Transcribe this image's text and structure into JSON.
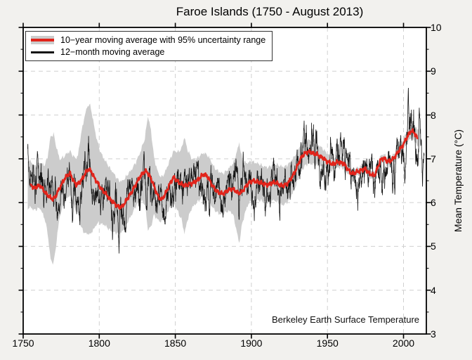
{
  "chart_data": {
    "type": "line",
    "title": "Faroe Islands  (1750 - August 2013)",
    "xlabel": "",
    "ylabel": "Mean Temperature (°C)",
    "attribution": "Berkeley Earth Surface Temperature",
    "xlim": [
      1750,
      2015
    ],
    "ylim": [
      3,
      10
    ],
    "xticks": [
      1750,
      1800,
      1850,
      1900,
      1950,
      2000
    ],
    "yticks": [
      3,
      4,
      5,
      6,
      7,
      8,
      9,
      10
    ],
    "y_minor_tick_step": 0.5,
    "grid": {
      "style": "dashed",
      "vertical_at": [
        1800,
        1850,
        1900,
        1950,
        2000
      ],
      "horizontal_at": [
        4,
        5,
        6,
        7,
        8,
        9
      ]
    },
    "legend_position": "top-left",
    "legend_items": [
      {
        "label": "10−year moving average with 95% uncertainty range",
        "swatch": "red-line-with-gray-band"
      },
      {
        "label": "12−month moving average",
        "swatch": "black-line"
      }
    ],
    "colors": {
      "ten_year_line": "#e1241b",
      "uncertainty_band": "#cccccc",
      "twelve_month_line": "#141414",
      "figure_background": "#f2f1ee",
      "plot_background": "#ffffff",
      "gridline": "#d0d0d0"
    },
    "series": {
      "ten_year_moving_average": {
        "units": "°C",
        "points": [
          [
            1755,
            6.42
          ],
          [
            1757,
            6.33
          ],
          [
            1759,
            6.36
          ],
          [
            1761,
            6.4
          ],
          [
            1763,
            6.3
          ],
          [
            1765,
            6.21
          ],
          [
            1767,
            6.14
          ],
          [
            1769,
            6.08
          ],
          [
            1771,
            6.12
          ],
          [
            1773,
            6.27
          ],
          [
            1775,
            6.4
          ],
          [
            1777,
            6.53
          ],
          [
            1779,
            6.63
          ],
          [
            1781,
            6.66
          ],
          [
            1783,
            6.5
          ],
          [
            1785,
            6.4
          ],
          [
            1787,
            6.46
          ],
          [
            1789,
            6.55
          ],
          [
            1791,
            6.68
          ],
          [
            1793,
            6.77
          ],
          [
            1795,
            6.7
          ],
          [
            1797,
            6.55
          ],
          [
            1799,
            6.45
          ],
          [
            1801,
            6.33
          ],
          [
            1803,
            6.25
          ],
          [
            1805,
            6.17
          ],
          [
            1807,
            6.08
          ],
          [
            1809,
            6.01
          ],
          [
            1811,
            5.95
          ],
          [
            1813,
            5.89
          ],
          [
            1815,
            5.91
          ],
          [
            1817,
            6.0
          ],
          [
            1819,
            6.12
          ],
          [
            1821,
            6.22
          ],
          [
            1823,
            6.35
          ],
          [
            1825,
            6.48
          ],
          [
            1827,
            6.6
          ],
          [
            1829,
            6.69
          ],
          [
            1831,
            6.72
          ],
          [
            1833,
            6.62
          ],
          [
            1835,
            6.47
          ],
          [
            1837,
            6.28
          ],
          [
            1839,
            6.12
          ],
          [
            1841,
            6.07
          ],
          [
            1843,
            6.17
          ],
          [
            1845,
            6.32
          ],
          [
            1847,
            6.47
          ],
          [
            1849,
            6.58
          ],
          [
            1851,
            6.5
          ],
          [
            1853,
            6.44
          ],
          [
            1855,
            6.41
          ],
          [
            1857,
            6.39
          ],
          [
            1859,
            6.42
          ],
          [
            1861,
            6.44
          ],
          [
            1863,
            6.47
          ],
          [
            1865,
            6.53
          ],
          [
            1867,
            6.6
          ],
          [
            1869,
            6.65
          ],
          [
            1871,
            6.6
          ],
          [
            1873,
            6.48
          ],
          [
            1875,
            6.35
          ],
          [
            1877,
            6.27
          ],
          [
            1879,
            6.22
          ],
          [
            1881,
            6.2
          ],
          [
            1883,
            6.24
          ],
          [
            1885,
            6.29
          ],
          [
            1887,
            6.32
          ],
          [
            1889,
            6.28
          ],
          [
            1891,
            6.23
          ],
          [
            1893,
            6.22
          ],
          [
            1895,
            6.3
          ],
          [
            1897,
            6.4
          ],
          [
            1899,
            6.47
          ],
          [
            1901,
            6.5
          ],
          [
            1903,
            6.48
          ],
          [
            1905,
            6.47
          ],
          [
            1907,
            6.44
          ],
          [
            1909,
            6.42
          ],
          [
            1911,
            6.4
          ],
          [
            1913,
            6.44
          ],
          [
            1915,
            6.47
          ],
          [
            1917,
            6.44
          ],
          [
            1919,
            6.4
          ],
          [
            1921,
            6.38
          ],
          [
            1923,
            6.42
          ],
          [
            1925,
            6.49
          ],
          [
            1927,
            6.6
          ],
          [
            1929,
            6.73
          ],
          [
            1931,
            6.9
          ],
          [
            1933,
            7.04
          ],
          [
            1935,
            7.12
          ],
          [
            1937,
            7.16
          ],
          [
            1939,
            7.15
          ],
          [
            1941,
            7.12
          ],
          [
            1943,
            7.1
          ],
          [
            1945,
            7.06
          ],
          [
            1947,
            7.02
          ],
          [
            1949,
            6.96
          ],
          [
            1951,
            6.92
          ],
          [
            1953,
            6.88
          ],
          [
            1955,
            6.9
          ],
          [
            1957,
            6.93
          ],
          [
            1959,
            6.91
          ],
          [
            1961,
            6.88
          ],
          [
            1963,
            6.78
          ],
          [
            1965,
            6.69
          ],
          [
            1967,
            6.66
          ],
          [
            1969,
            6.7
          ],
          [
            1971,
            6.72
          ],
          [
            1973,
            6.75
          ],
          [
            1975,
            6.77
          ],
          [
            1977,
            6.68
          ],
          [
            1979,
            6.64
          ],
          [
            1981,
            6.62
          ],
          [
            1983,
            6.8
          ],
          [
            1985,
            6.98
          ],
          [
            1987,
            7.02
          ],
          [
            1989,
            6.95
          ],
          [
            1991,
            6.95
          ],
          [
            1993,
            6.99
          ],
          [
            1995,
            7.08
          ],
          [
            1997,
            7.19
          ],
          [
            1999,
            7.28
          ],
          [
            2001,
            7.4
          ],
          [
            2003,
            7.54
          ],
          [
            2005,
            7.64
          ],
          [
            2007,
            7.6
          ],
          [
            2009,
            7.48
          ]
        ]
      },
      "uncertainty_95_half_width": {
        "units": "°C",
        "points": [
          [
            1753,
            0.55
          ],
          [
            1757,
            0.5
          ],
          [
            1761,
            0.52
          ],
          [
            1764,
            0.6
          ],
          [
            1766,
            0.85
          ],
          [
            1768,
            1.4
          ],
          [
            1770,
            1.48
          ],
          [
            1772,
            1.05
          ],
          [
            1774,
            0.65
          ],
          [
            1777,
            0.52
          ],
          [
            1780,
            0.5
          ],
          [
            1783,
            0.55
          ],
          [
            1786,
            0.65
          ],
          [
            1788,
            1.05
          ],
          [
            1790,
            1.3
          ],
          [
            1792,
            1.45
          ],
          [
            1794,
            1.48
          ],
          [
            1796,
            1.25
          ],
          [
            1798,
            1.0
          ],
          [
            1800,
            0.85
          ],
          [
            1803,
            0.75
          ],
          [
            1806,
            0.72
          ],
          [
            1809,
            0.68
          ],
          [
            1812,
            0.62
          ],
          [
            1815,
            0.58
          ],
          [
            1818,
            0.55
          ],
          [
            1821,
            0.52
          ],
          [
            1824,
            0.5
          ],
          [
            1827,
            0.55
          ],
          [
            1830,
            0.75
          ],
          [
            1832,
            1.3
          ],
          [
            1834,
            1.1
          ],
          [
            1836,
            0.65
          ],
          [
            1839,
            0.53
          ],
          [
            1842,
            0.5
          ],
          [
            1845,
            0.52
          ],
          [
            1848,
            0.58
          ],
          [
            1851,
            0.65
          ],
          [
            1854,
            0.8
          ],
          [
            1856,
            1.1
          ],
          [
            1858,
            0.8
          ],
          [
            1861,
            0.55
          ],
          [
            1864,
            0.5
          ],
          [
            1867,
            0.5
          ],
          [
            1870,
            0.48
          ],
          [
            1873,
            0.5
          ],
          [
            1876,
            0.48
          ],
          [
            1879,
            0.48
          ],
          [
            1882,
            0.46
          ],
          [
            1885,
            0.48
          ],
          [
            1888,
            0.58
          ],
          [
            1890,
            0.85
          ],
          [
            1892,
            1.15
          ],
          [
            1894,
            0.72
          ],
          [
            1897,
            0.5
          ],
          [
            1900,
            0.44
          ],
          [
            1904,
            0.42
          ],
          [
            1908,
            0.4
          ],
          [
            1912,
            0.4
          ],
          [
            1916,
            0.42
          ],
          [
            1920,
            0.44
          ],
          [
            1924,
            0.42
          ],
          [
            1928,
            0.38
          ],
          [
            1932,
            0.33
          ],
          [
            1936,
            0.28
          ],
          [
            1940,
            0.26
          ],
          [
            1944,
            0.24
          ],
          [
            1948,
            0.2
          ],
          [
            1952,
            0.16
          ],
          [
            1956,
            0.13
          ],
          [
            1960,
            0.11
          ],
          [
            1964,
            0.1
          ],
          [
            1968,
            0.09
          ],
          [
            1972,
            0.09
          ],
          [
            1976,
            0.09
          ],
          [
            1980,
            0.09
          ],
          [
            1984,
            0.09
          ],
          [
            1988,
            0.09
          ],
          [
            1992,
            0.09
          ],
          [
            1996,
            0.1
          ],
          [
            2000,
            0.12
          ],
          [
            2004,
            0.15
          ],
          [
            2007,
            0.17
          ],
          [
            2010,
            0.2
          ]
        ]
      },
      "twelve_month_moving_average": {
        "description": "noisy monthly series oscillating about the 10-year average",
        "start_year": 1753.0,
        "end_year": 2013.58,
        "samples_per_year": 12,
        "noise_std": 0.34,
        "noise_persistence": 0.94,
        "seed": 7,
        "notable_extremes_delta": [
          [
            1813.0,
            -0.75
          ],
          [
            1892.0,
            -0.85
          ],
          [
            1918.6,
            -0.85
          ],
          [
            2003.1,
            0.85
          ],
          [
            2010.4,
            0.55
          ],
          [
            2012.4,
            -0.65
          ]
        ]
      }
    }
  }
}
